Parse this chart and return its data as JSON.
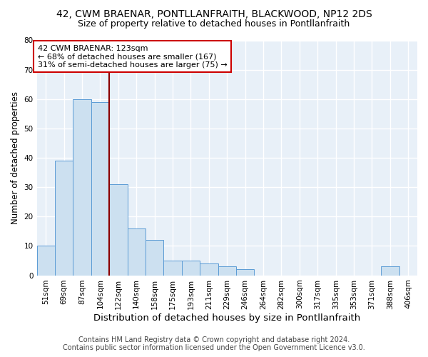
{
  "title1": "42, CWM BRAENAR, PONTLLANFRAITH, BLACKWOOD, NP12 2DS",
  "title2": "Size of property relative to detached houses in Pontllanfraith",
  "xlabel": "Distribution of detached houses by size in Pontllanfraith",
  "ylabel": "Number of detached properties",
  "categories": [
    "51sqm",
    "69sqm",
    "87sqm",
    "104sqm",
    "122sqm",
    "140sqm",
    "158sqm",
    "175sqm",
    "193sqm",
    "211sqm",
    "229sqm",
    "246sqm",
    "264sqm",
    "282sqm",
    "300sqm",
    "317sqm",
    "335sqm",
    "353sqm",
    "371sqm",
    "388sqm",
    "406sqm"
  ],
  "values": [
    10,
    39,
    60,
    59,
    31,
    16,
    12,
    5,
    5,
    4,
    3,
    2,
    0,
    0,
    0,
    0,
    0,
    0,
    0,
    3,
    0
  ],
  "bar_color": "#cce0f0",
  "bar_edge_color": "#5b9bd5",
  "vline_x_idx": 4,
  "vline_color": "#8b0000",
  "ylim": [
    0,
    80
  ],
  "yticks": [
    0,
    10,
    20,
    30,
    40,
    50,
    60,
    70,
    80
  ],
  "annotation_title": "42 CWM BRAENAR: 123sqm",
  "annotation_line1": "← 68% of detached houses are smaller (167)",
  "annotation_line2": "31% of semi-detached houses are larger (75) →",
  "annotation_box_color": "#ffffff",
  "annotation_box_edge": "#cc0000",
  "footer1": "Contains HM Land Registry data © Crown copyright and database right 2024.",
  "footer2": "Contains public sector information licensed under the Open Government Licence v3.0.",
  "background_color": "#ffffff",
  "plot_background": "#e8f0f8",
  "grid_color": "#ffffff",
  "title1_fontsize": 10,
  "title2_fontsize": 9,
  "xlabel_fontsize": 9.5,
  "ylabel_fontsize": 8.5,
  "tick_fontsize": 7.5,
  "footer_fontsize": 7,
  "annotation_fontsize": 8
}
